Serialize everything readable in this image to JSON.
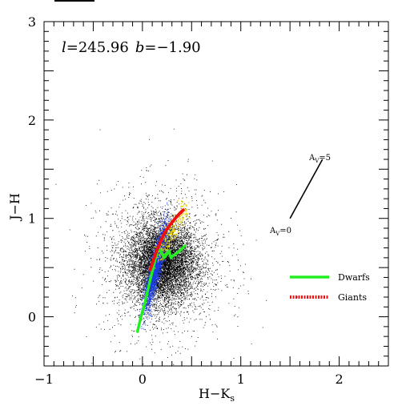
{
  "chart_data": {
    "type": "scatter",
    "annotation": {
      "l_label": "l",
      "l_value": "=245.96",
      "b_label": "b",
      "b_value": "=−1.90"
    },
    "xlabel": "H−K",
    "xlabel_sub": "s",
    "ylabel": "J−H",
    "xlim": [
      -1,
      2.5
    ],
    "ylim": [
      -0.5,
      3
    ],
    "x_ticks": [
      -1,
      0,
      1,
      2
    ],
    "x_tick_labels": [
      "−1",
      "0",
      "1",
      "2"
    ],
    "y_ticks": [
      0,
      1,
      2,
      3
    ],
    "y_tick_labels": [
      "0",
      "1",
      "2",
      "3"
    ],
    "grid": false,
    "legend_position": "right",
    "series": [
      {
        "name": "Dwarfs",
        "color": "#22ee22",
        "x": [
          -0.05,
          -0.02,
          0.02,
          0.05,
          0.08,
          0.11,
          0.14,
          0.16,
          0.19,
          0.22,
          0.25,
          0.27,
          0.29,
          0.31,
          0.34,
          0.38,
          0.43
        ],
        "y": [
          -0.15,
          -0.02,
          0.12,
          0.25,
          0.38,
          0.5,
          0.62,
          0.7,
          0.66,
          0.6,
          0.64,
          0.67,
          0.6,
          0.62,
          0.64,
          0.67,
          0.72
        ]
      },
      {
        "name": "Giants",
        "color": "#ee1111",
        "x": [
          0.08,
          0.11,
          0.14,
          0.17,
          0.2,
          0.23,
          0.27,
          0.31,
          0.35,
          0.39,
          0.42
        ],
        "y": [
          0.48,
          0.57,
          0.66,
          0.73,
          0.8,
          0.86,
          0.92,
          0.97,
          1.02,
          1.06,
          1.09
        ]
      }
    ],
    "reddening_vector": {
      "start_label": "A",
      "start_sub": "V",
      "start_value": "=0",
      "end_label": "A",
      "end_sub": "V",
      "end_value": "=5",
      "x": [
        1.5,
        1.83
      ],
      "y": [
        1.0,
        1.6
      ]
    },
    "point_colors": {
      "field": "#000000",
      "dense_core": "#1c3be0",
      "giant_branch": "#e8d800"
    },
    "header_mark": true
  }
}
